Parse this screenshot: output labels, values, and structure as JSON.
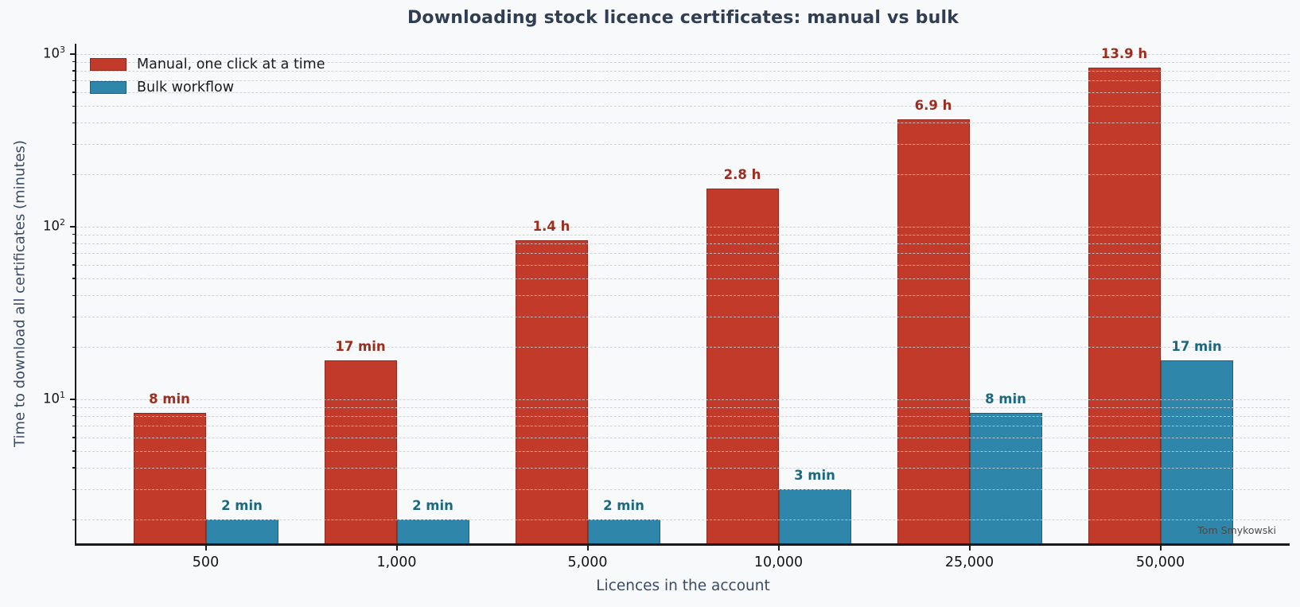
{
  "figure": {
    "background": "#f8f9fa",
    "watermark": "Tom Smykowski"
  },
  "chart_data": {
    "type": "bar",
    "title": "Downloading stock licence certificates: manual vs bulk",
    "xlabel": "Licences in the account",
    "ylabel": "Time to download all certificates (minutes)",
    "yscale": "log",
    "ylim": [
      1.46,
      1146
    ],
    "grid": {
      "show": true,
      "axis": "y",
      "style": "dashed"
    },
    "legend_position": "upper left",
    "categories": [
      "500",
      "1,000",
      "5,000",
      "10,000",
      "25,000",
      "50,000"
    ],
    "y_ticks": [
      {
        "value": 10,
        "display": "10^1"
      },
      {
        "value": 100,
        "display": "10^2"
      },
      {
        "value": 1000,
        "display": "10^3"
      }
    ],
    "series": [
      {
        "name": "Manual, one click at a time",
        "color": "#c23a2a",
        "edge_color": "#8e2a1e",
        "label_color": "#9c2e1f",
        "values_minutes": [
          8.3,
          16.7,
          83.3,
          166.7,
          416.7,
          833.3
        ],
        "value_labels": [
          "8 min",
          "17 min",
          "1.4 h",
          "2.8 h",
          "6.9 h",
          "13.9 h"
        ]
      },
      {
        "name": "Bulk workflow",
        "color": "#2e86ab",
        "edge_color": "#20607f",
        "label_color": "#1d6881",
        "values_minutes": [
          2,
          2,
          2,
          3,
          8.3,
          16.7
        ],
        "value_labels": [
          "2 min",
          "2 min",
          "2 min",
          "3 min",
          "8 min",
          "17 min"
        ]
      }
    ],
    "colors": {
      "title": "#2f3e52",
      "axis_label": "#3a4a66",
      "tick_label": "#141414",
      "spine": "#1a1a1a",
      "gridline": "#c9ced4"
    }
  }
}
